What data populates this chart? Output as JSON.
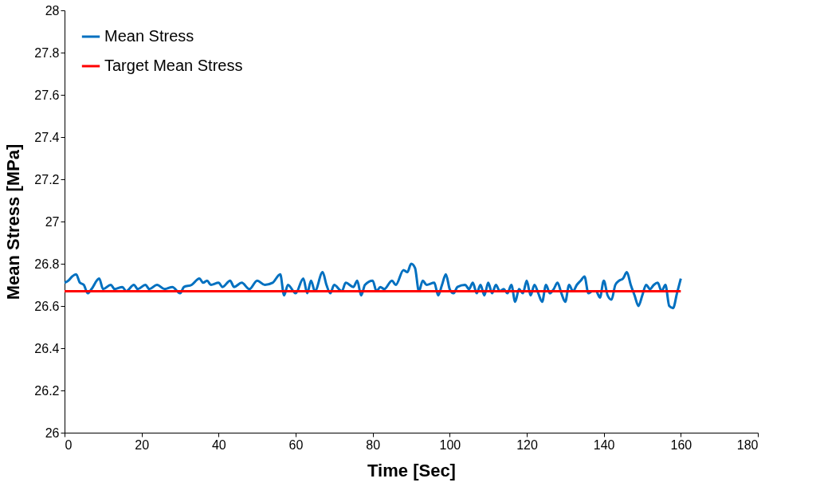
{
  "chart_data": {
    "type": "line",
    "xlabel": "Time [Sec]",
    "ylabel": "Mean Stress [MPa]",
    "xlim": [
      0,
      180
    ],
    "xticks": [
      0,
      20,
      40,
      60,
      80,
      100,
      120,
      140,
      160,
      180
    ],
    "ylim": [
      26,
      28
    ],
    "yticks": [
      26,
      26.2,
      26.4,
      26.6,
      26.8,
      27,
      27.2,
      27.4,
      27.6,
      27.8,
      28
    ],
    "grid": false,
    "legend": "top left",
    "marker": "none",
    "line_style": "solid",
    "series": [
      {
        "name": "Mean Stress",
        "color": "#0070c0",
        "x": [
          0,
          1,
          2,
          3,
          4,
          5,
          6,
          7,
          9,
          10,
          12,
          13,
          15,
          16,
          18,
          19,
          21,
          22,
          24,
          26,
          28,
          30,
          31,
          33,
          35,
          36,
          37,
          38,
          40,
          41,
          43,
          44,
          46,
          48,
          50,
          52,
          54,
          56,
          57,
          58,
          60,
          62,
          63,
          64,
          65,
          67,
          68,
          69,
          70,
          72,
          73,
          75,
          76,
          77,
          78,
          80,
          81,
          82,
          83,
          85,
          86,
          88,
          89,
          90,
          91,
          92,
          93,
          94,
          96,
          97,
          98,
          99,
          100,
          101,
          102,
          104,
          105,
          106,
          107,
          108,
          109,
          110,
          111,
          112,
          113,
          114,
          115,
          116,
          117,
          118,
          119,
          120,
          121,
          122,
          123,
          124,
          125,
          126,
          127,
          128,
          129,
          130,
          131,
          132,
          133,
          134,
          135,
          136,
          137,
          138,
          139,
          140,
          141,
          142,
          143,
          144,
          145,
          146,
          147,
          148,
          149,
          150,
          151,
          152,
          153,
          154,
          155,
          156,
          157,
          158,
          159,
          160
        ],
        "values": [
          26.71,
          26.72,
          26.74,
          26.75,
          26.71,
          26.7,
          26.66,
          26.68,
          26.73,
          26.68,
          26.7,
          26.68,
          26.69,
          26.67,
          26.7,
          26.68,
          26.7,
          26.68,
          26.7,
          26.68,
          26.69,
          26.66,
          26.69,
          26.7,
          26.73,
          26.71,
          26.72,
          26.7,
          26.71,
          26.69,
          26.72,
          26.69,
          26.71,
          26.68,
          26.72,
          26.7,
          26.71,
          26.75,
          26.65,
          26.7,
          26.66,
          26.73,
          26.66,
          26.72,
          26.67,
          26.76,
          26.7,
          26.66,
          26.7,
          26.67,
          26.71,
          26.69,
          26.72,
          26.65,
          26.7,
          26.72,
          26.67,
          26.69,
          26.68,
          26.72,
          26.7,
          26.77,
          26.76,
          26.8,
          26.78,
          26.67,
          26.72,
          26.7,
          26.71,
          26.65,
          26.7,
          26.75,
          26.68,
          26.66,
          26.69,
          26.7,
          26.68,
          26.71,
          26.66,
          26.7,
          26.65,
          26.71,
          26.66,
          26.7,
          26.67,
          26.68,
          26.66,
          26.7,
          26.62,
          26.68,
          26.66,
          26.72,
          26.65,
          26.7,
          26.66,
          26.62,
          26.7,
          26.66,
          26.68,
          26.71,
          26.66,
          26.62,
          26.7,
          26.67,
          26.7,
          26.72,
          26.74,
          26.66,
          26.67,
          26.67,
          26.64,
          26.72,
          26.65,
          26.63,
          26.7,
          26.72,
          26.73,
          26.76,
          26.7,
          26.65,
          26.6,
          26.65,
          26.7,
          26.68,
          26.7,
          26.71,
          26.67,
          26.7,
          26.6,
          26.59,
          26.66,
          26.73
        ]
      },
      {
        "name": "Target Mean Stress",
        "color": "#ff0000",
        "x": [
          0,
          160
        ],
        "values": [
          26.67,
          26.67
        ]
      }
    ]
  }
}
